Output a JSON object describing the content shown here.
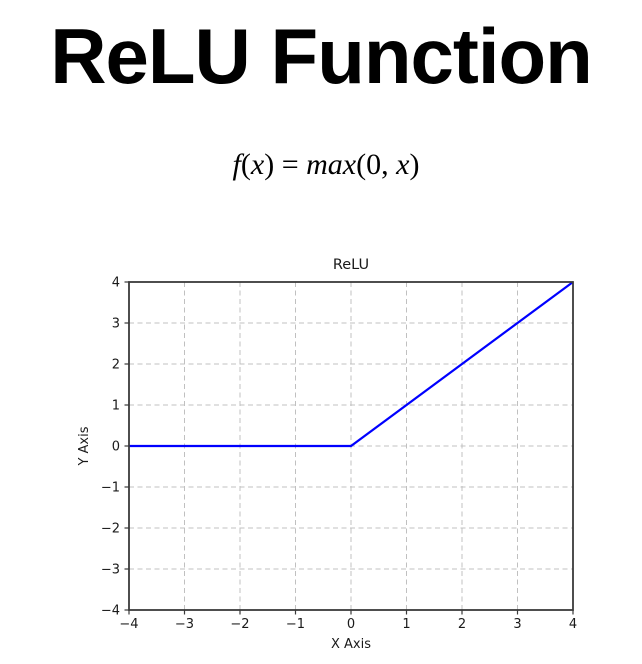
{
  "header": {
    "title": "ReLU Function"
  },
  "formula": {
    "text": "f(x) = max(0, x)",
    "parts": [
      "f",
      "(",
      "x",
      ") = ",
      "max",
      "(0, ",
      "x",
      ")"
    ]
  },
  "chart_data": {
    "type": "line",
    "title": "ReLU",
    "xlabel": "X Axis",
    "ylabel": "Y Axis",
    "xlim": [
      -4,
      4
    ],
    "ylim": [
      -4,
      4
    ],
    "xticks": [
      -4,
      -3,
      -2,
      -1,
      0,
      1,
      2,
      3,
      4
    ],
    "yticks": [
      -4,
      -3,
      -2,
      -1,
      0,
      1,
      2,
      3,
      4
    ],
    "grid": true,
    "grid_style": "dashed",
    "grid_color": "#c0c0c0",
    "axis_color": "#3a3a3a",
    "text_color": "#1a1a1a",
    "series": [
      {
        "name": "relu",
        "color": "#0000ff",
        "x": [
          -4,
          0,
          4
        ],
        "y": [
          0,
          0,
          4
        ]
      }
    ]
  }
}
